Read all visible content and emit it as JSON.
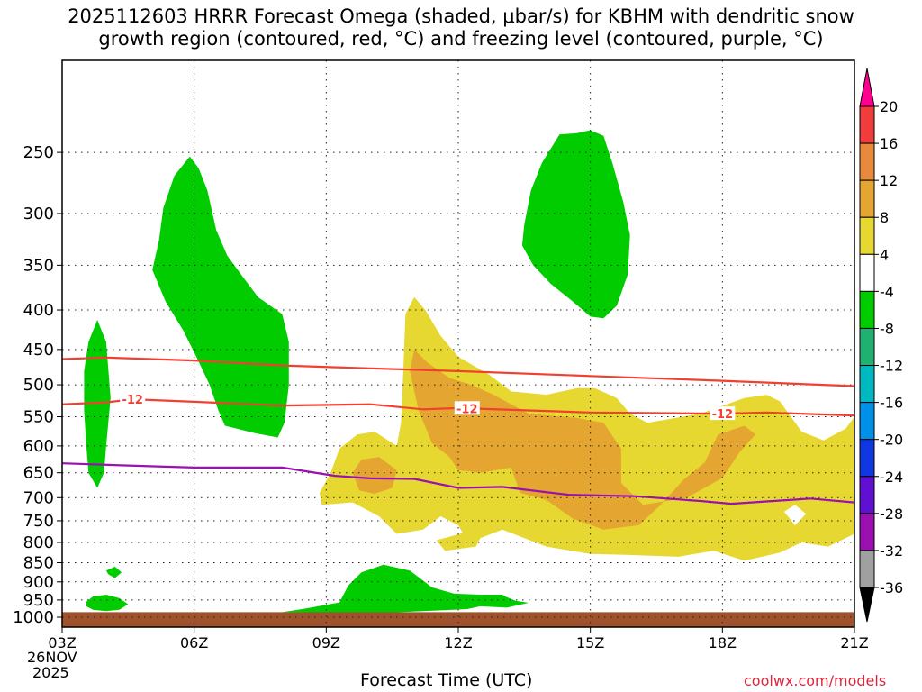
{
  "header": {
    "title_line1": "2025112603 HRRR Forecast Omega (shaded, μbar/s) for KBHM with dendritic snow",
    "title_line2": "growth region (contoured, red, °C) and freezing level (contoured, purple, °C)"
  },
  "footer": {
    "xlabel": "Forecast Time (UTC)",
    "credit": "coolwx.com/models",
    "date_line1": "26NOV",
    "date_line2": "2025"
  },
  "colors": {
    "ground": "#a0522d",
    "green": "#00cc00",
    "yellow": "#e6d830",
    "orange": "#e4a630",
    "red_contour": "#f04030",
    "purple_contour": "#9a10b0"
  },
  "chart_data": {
    "type": "heatmap",
    "title": "2025112603 HRRR Forecast Omega (shaded, μbar/s) for KBHM with dendritic snow growth region (contoured, red, °C) and freezing level (contoured, purple, °C)",
    "xlabel": "Forecast Time (UTC)",
    "ylabel": "",
    "x_unit": "forecast hour",
    "xlim": [
      0,
      18
    ],
    "x_ticks": [
      {
        "hour": 0,
        "label": "03Z"
      },
      {
        "hour": 3,
        "label": "06Z"
      },
      {
        "hour": 6,
        "label": "09Z"
      },
      {
        "hour": 9,
        "label": "12Z"
      },
      {
        "hour": 12,
        "label": "15Z"
      },
      {
        "hour": 15,
        "label": "18Z"
      },
      {
        "hour": 18,
        "label": "21Z"
      }
    ],
    "y_scale": "log-pressure",
    "ylim_hpa": [
      1030,
      190
    ],
    "y_ticks": [
      250,
      300,
      350,
      400,
      450,
      500,
      550,
      600,
      650,
      700,
      750,
      800,
      850,
      900,
      950,
      1000
    ],
    "grid": true,
    "colorbar": {
      "position": "right",
      "labels": [
        "20",
        "16",
        "12",
        "8",
        "4",
        "-4",
        "-8",
        "-12",
        "-16",
        "-20",
        "-24",
        "-28",
        "-32",
        "-36"
      ],
      "colors": [
        "#ff0090",
        "#f03c3c",
        "#e88a3c",
        "#e4a630",
        "#e6d830",
        "#ffffff",
        "#00cc00",
        "#20b070",
        "#00b8c0",
        "#0090e8",
        "#1038e0",
        "#6010d0",
        "#9a10b0",
        "#a0a0a0",
        "#000000"
      ]
    },
    "regions": [
      {
        "class": "green",
        "points": [
          [
            0.5,
            480
          ],
          [
            0.6,
            440
          ],
          [
            0.8,
            412
          ],
          [
            1.0,
            440
          ],
          [
            1.1,
            520
          ],
          [
            1.0,
            600
          ],
          [
            0.95,
            650
          ],
          [
            0.8,
            680
          ],
          [
            0.6,
            650
          ],
          [
            0.55,
            600
          ],
          [
            0.5,
            540
          ]
        ]
      },
      {
        "class": "green",
        "points": [
          [
            2.05,
            355
          ],
          [
            2.2,
            325
          ],
          [
            2.3,
            295
          ],
          [
            2.55,
            268
          ],
          [
            2.9,
            253
          ],
          [
            3.1,
            262
          ],
          [
            3.3,
            280
          ],
          [
            3.5,
            315
          ],
          [
            3.75,
            340
          ],
          [
            4.1,
            362
          ],
          [
            4.45,
            385
          ],
          [
            5.0,
            405
          ],
          [
            5.15,
            440
          ],
          [
            5.15,
            500
          ],
          [
            5.05,
            560
          ],
          [
            4.9,
            585
          ],
          [
            4.4,
            578
          ],
          [
            3.7,
            565
          ],
          [
            3.55,
            540
          ],
          [
            3.35,
            500
          ],
          [
            3.05,
            460
          ],
          [
            2.75,
            425
          ],
          [
            2.35,
            390
          ]
        ]
      },
      {
        "class": "green",
        "points": [
          [
            10.5,
            310
          ],
          [
            10.65,
            280
          ],
          [
            10.9,
            258
          ],
          [
            11.3,
            237
          ],
          [
            11.7,
            236
          ],
          [
            12.0,
            234
          ],
          [
            12.3,
            238
          ],
          [
            12.5,
            258
          ],
          [
            12.75,
            290
          ],
          [
            12.9,
            320
          ],
          [
            12.85,
            360
          ],
          [
            12.6,
            395
          ],
          [
            12.3,
            410
          ],
          [
            12.0,
            408
          ],
          [
            11.6,
            390
          ],
          [
            11.1,
            370
          ],
          [
            10.7,
            350
          ],
          [
            10.45,
            330
          ]
        ]
      },
      {
        "class": "green",
        "points": [
          [
            1.0,
            870
          ],
          [
            1.2,
            860
          ],
          [
            1.35,
            875
          ],
          [
            1.2,
            890
          ],
          [
            1.05,
            880
          ]
        ]
      },
      {
        "class": "green",
        "points": [
          [
            0.55,
            955
          ],
          [
            0.7,
            940
          ],
          [
            1.0,
            935
          ],
          [
            1.3,
            945
          ],
          [
            1.5,
            962
          ],
          [
            1.3,
            978
          ],
          [
            1.0,
            982
          ],
          [
            0.7,
            978
          ],
          [
            0.55,
            968
          ]
        ]
      },
      {
        "class": "green",
        "points": [
          [
            5.0,
            985
          ],
          [
            5.5,
            975
          ],
          [
            6.3,
            957
          ],
          [
            6.5,
            910
          ],
          [
            6.8,
            875
          ],
          [
            7.3,
            855
          ],
          [
            7.9,
            870
          ],
          [
            8.4,
            915
          ],
          [
            8.9,
            932
          ],
          [
            9.5,
            935
          ],
          [
            10.0,
            935
          ],
          [
            10.1,
            942
          ],
          [
            10.3,
            952
          ],
          [
            10.6,
            958
          ],
          [
            10.1,
            972
          ],
          [
            9.5,
            968
          ],
          [
            9.2,
            976
          ],
          [
            7.5,
            986
          ]
        ]
      },
      {
        "class": "yellow",
        "points": [
          [
            7.8,
            405
          ],
          [
            8.0,
            385
          ],
          [
            8.25,
            400
          ],
          [
            8.6,
            432
          ],
          [
            9.0,
            460
          ],
          [
            9.7,
            485
          ],
          [
            10.2,
            510
          ],
          [
            11.0,
            515
          ],
          [
            11.7,
            505
          ],
          [
            12.1,
            505
          ],
          [
            12.6,
            520
          ],
          [
            12.9,
            545
          ],
          [
            13.3,
            560
          ],
          [
            14.5,
            545
          ],
          [
            15.5,
            520
          ],
          [
            16.0,
            515
          ],
          [
            16.3,
            525
          ],
          [
            16.8,
            575
          ],
          [
            17.3,
            590
          ],
          [
            17.8,
            570
          ],
          [
            18.0,
            550
          ],
          [
            18.0,
            780
          ],
          [
            17.4,
            810
          ],
          [
            16.8,
            800
          ],
          [
            16.3,
            825
          ],
          [
            15.5,
            845
          ],
          [
            14.8,
            820
          ],
          [
            14.0,
            835
          ],
          [
            12.8,
            830
          ],
          [
            12.0,
            828
          ],
          [
            11.0,
            810
          ],
          [
            10.0,
            770
          ],
          [
            9.5,
            790
          ],
          [
            9.4,
            810
          ],
          [
            8.7,
            820
          ],
          [
            8.5,
            795
          ],
          [
            9.1,
            778
          ],
          [
            9.0,
            760
          ],
          [
            8.6,
            740
          ],
          [
            8.2,
            770
          ],
          [
            7.6,
            780
          ],
          [
            7.2,
            740
          ],
          [
            6.6,
            710
          ],
          [
            5.9,
            715
          ],
          [
            5.85,
            690
          ],
          [
            6.1,
            650
          ],
          [
            6.3,
            605
          ],
          [
            6.7,
            580
          ],
          [
            7.1,
            575
          ],
          [
            7.6,
            600
          ],
          [
            7.7,
            560
          ],
          [
            7.75,
            480
          ]
        ]
      },
      {
        "class": "orange",
        "points": [
          [
            8.0,
            450
          ],
          [
            8.3,
            468
          ],
          [
            8.8,
            490
          ],
          [
            9.3,
            500
          ],
          [
            9.8,
            515
          ],
          [
            10.6,
            545
          ],
          [
            11.7,
            552
          ],
          [
            12.3,
            560
          ],
          [
            12.7,
            605
          ],
          [
            12.7,
            670
          ],
          [
            13.2,
            715
          ],
          [
            14.2,
            700
          ],
          [
            15.0,
            660
          ],
          [
            15.4,
            610
          ],
          [
            15.75,
            580
          ],
          [
            15.5,
            565
          ],
          [
            14.9,
            580
          ],
          [
            14.6,
            630
          ],
          [
            14.1,
            665
          ],
          [
            13.6,
            715
          ],
          [
            13.1,
            760
          ],
          [
            12.3,
            770
          ],
          [
            11.6,
            745
          ],
          [
            11.0,
            705
          ],
          [
            10.4,
            690
          ],
          [
            10.2,
            640
          ],
          [
            9.5,
            650
          ],
          [
            9.0,
            645
          ],
          [
            8.8,
            620
          ],
          [
            8.4,
            595
          ],
          [
            8.1,
            540
          ],
          [
            7.9,
            480
          ]
        ]
      },
      {
        "class": "orange",
        "points": [
          [
            6.6,
            650
          ],
          [
            6.8,
            625
          ],
          [
            7.2,
            620
          ],
          [
            7.6,
            645
          ],
          [
            7.5,
            680
          ],
          [
            7.1,
            692
          ],
          [
            6.75,
            685
          ]
        ]
      },
      {
        "class": "white",
        "points": [
          [
            16.4,
            730
          ],
          [
            16.65,
            715
          ],
          [
            16.9,
            735
          ],
          [
            16.65,
            760
          ]
        ]
      }
    ],
    "contours": [
      {
        "color": "red",
        "label": "",
        "points": [
          [
            0,
            463
          ],
          [
            1,
            461
          ],
          [
            3,
            465
          ],
          [
            5,
            472
          ],
          [
            7,
            476
          ],
          [
            9,
            480
          ],
          [
            12,
            487
          ],
          [
            15,
            494
          ],
          [
            18,
            502
          ]
        ]
      },
      {
        "color": "red",
        "label": "-12",
        "label_hours": [
          1.6,
          9.2,
          15.0
        ],
        "points": [
          [
            0,
            530
          ],
          [
            1,
            527
          ],
          [
            1.6,
            522
          ],
          [
            3,
            526
          ],
          [
            5,
            532
          ],
          [
            7,
            530
          ],
          [
            8.2,
            538
          ],
          [
            9,
            536
          ],
          [
            12,
            543
          ],
          [
            15,
            545
          ],
          [
            16,
            543
          ],
          [
            18,
            548
          ]
        ]
      },
      {
        "color": "purple",
        "label": "",
        "points": [
          [
            0,
            632
          ],
          [
            1.5,
            636
          ],
          [
            3,
            640
          ],
          [
            5,
            640
          ],
          [
            6.2,
            656
          ],
          [
            7,
            661
          ],
          [
            8.0,
            662
          ],
          [
            9,
            680
          ],
          [
            10,
            678
          ],
          [
            11.5,
            694
          ],
          [
            13,
            697
          ],
          [
            14.5,
            707
          ],
          [
            15.2,
            713
          ],
          [
            16,
            708
          ],
          [
            17,
            702
          ],
          [
            18,
            710
          ]
        ]
      }
    ],
    "ground_hpa": 985
  }
}
